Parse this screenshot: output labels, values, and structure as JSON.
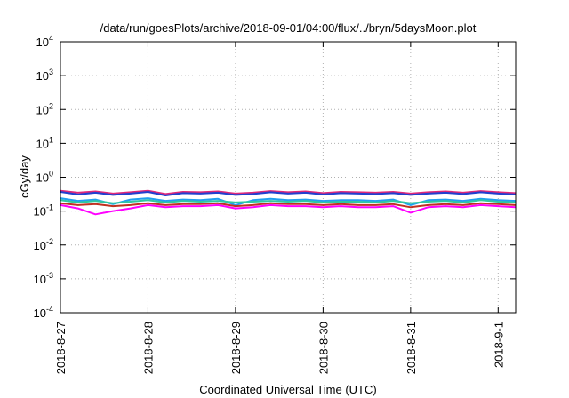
{
  "chart_data": {
    "type": "line",
    "title": "/data/run/goesPlots/archive/2018-09-01/04:00/flux/../bryn/5daysMoon.plot",
    "xlabel": "Coordinated Universal Time (UTC)",
    "ylabel": "cGy/day",
    "yscale": "log",
    "ylim": [
      0.0001,
      10000
    ],
    "xlim": [
      0,
      5.2
    ],
    "grid": true,
    "x_ticks": [
      {
        "value": 0,
        "label": "2018-8-27"
      },
      {
        "value": 1,
        "label": "2018-8-28"
      },
      {
        "value": 2,
        "label": "2018-8-29"
      },
      {
        "value": 3,
        "label": "2018-8-30"
      },
      {
        "value": 4,
        "label": "2018-8-31"
      },
      {
        "value": 5,
        "label": "2018-9-1"
      }
    ],
    "y_ticks": [
      {
        "value": 0.0001,
        "base": "10",
        "exp": "-4"
      },
      {
        "value": 0.001,
        "base": "10",
        "exp": "-3"
      },
      {
        "value": 0.01,
        "base": "10",
        "exp": "-2"
      },
      {
        "value": 0.1,
        "base": "10",
        "exp": "-1"
      },
      {
        "value": 1,
        "base": "10",
        "exp": "0"
      },
      {
        "value": 10,
        "base": "10",
        "exp": "1"
      },
      {
        "value": 100,
        "base": "10",
        "exp": "2"
      },
      {
        "value": 1000,
        "base": "10",
        "exp": "3"
      },
      {
        "value": 10000,
        "base": "10",
        "exp": "4"
      }
    ],
    "series": [
      {
        "color": "#e0287a",
        "x": [
          0,
          0.2,
          0.4,
          0.6,
          0.8,
          1.0,
          1.2,
          1.4,
          1.6,
          1.8,
          2.0,
          2.2,
          2.4,
          2.6,
          2.8,
          3.0,
          3.2,
          3.4,
          3.6,
          3.8,
          4.0,
          4.2,
          4.4,
          4.6,
          4.8,
          5.0,
          5.2
        ],
        "values": [
          0.4,
          0.35,
          0.38,
          0.33,
          0.36,
          0.4,
          0.32,
          0.37,
          0.36,
          0.38,
          0.33,
          0.35,
          0.39,
          0.36,
          0.38,
          0.34,
          0.37,
          0.36,
          0.35,
          0.37,
          0.33,
          0.36,
          0.38,
          0.35,
          0.39,
          0.36,
          0.34
        ]
      },
      {
        "color": "#2040d0",
        "x": [
          0,
          0.2,
          0.4,
          0.6,
          0.8,
          1.0,
          1.2,
          1.4,
          1.6,
          1.8,
          2.0,
          2.2,
          2.4,
          2.6,
          2.8,
          3.0,
          3.2,
          3.4,
          3.6,
          3.8,
          4.0,
          4.2,
          4.4,
          4.6,
          4.8,
          5.0,
          5.2
        ],
        "values": [
          0.37,
          0.31,
          0.35,
          0.3,
          0.33,
          0.37,
          0.29,
          0.34,
          0.33,
          0.35,
          0.3,
          0.32,
          0.36,
          0.33,
          0.35,
          0.31,
          0.34,
          0.33,
          0.32,
          0.34,
          0.3,
          0.33,
          0.35,
          0.32,
          0.36,
          0.33,
          0.31
        ]
      },
      {
        "color": "#20a0f0",
        "x": [
          0,
          0.2,
          0.4,
          0.6,
          0.8,
          1.0,
          1.2,
          1.4,
          1.6,
          1.8,
          2.0,
          2.2,
          2.4,
          2.6,
          2.8,
          3.0,
          3.2,
          3.4,
          3.6,
          3.8,
          4.0,
          4.2,
          4.4,
          4.6,
          4.8,
          5.0,
          5.2
        ],
        "values": [
          0.24,
          0.2,
          0.22,
          0.16,
          0.22,
          0.24,
          0.2,
          0.22,
          0.21,
          0.23,
          0.15,
          0.21,
          0.23,
          0.21,
          0.22,
          0.2,
          0.21,
          0.21,
          0.2,
          0.22,
          0.15,
          0.21,
          0.22,
          0.2,
          0.23,
          0.21,
          0.2
        ]
      },
      {
        "color": "#30c8a0",
        "x": [
          0,
          0.2,
          0.4,
          0.6,
          0.8,
          1.0,
          1.2,
          1.4,
          1.6,
          1.8,
          2.0,
          2.2,
          2.4,
          2.6,
          2.8,
          3.0,
          3.2,
          3.4,
          3.6,
          3.8,
          4.0,
          4.2,
          4.4,
          4.6,
          4.8,
          5.0,
          5.2
        ],
        "values": [
          0.21,
          0.18,
          0.2,
          0.17,
          0.19,
          0.21,
          0.18,
          0.2,
          0.19,
          0.2,
          0.18,
          0.19,
          0.2,
          0.19,
          0.2,
          0.18,
          0.19,
          0.19,
          0.18,
          0.2,
          0.17,
          0.19,
          0.2,
          0.18,
          0.21,
          0.19,
          0.18
        ]
      },
      {
        "color": "#ff00ff",
        "x": [
          0,
          0.2,
          0.4,
          0.6,
          0.8,
          1.0,
          1.2,
          1.4,
          1.6,
          1.8,
          2.0,
          2.2,
          2.4,
          2.6,
          2.8,
          3.0,
          3.2,
          3.4,
          3.6,
          3.8,
          4.0,
          4.2,
          4.4,
          4.6,
          4.8,
          5.0,
          5.2
        ],
        "values": [
          0.15,
          0.12,
          0.08,
          0.1,
          0.12,
          0.15,
          0.13,
          0.14,
          0.14,
          0.15,
          0.12,
          0.13,
          0.15,
          0.14,
          0.14,
          0.13,
          0.14,
          0.13,
          0.13,
          0.14,
          0.09,
          0.13,
          0.14,
          0.13,
          0.15,
          0.14,
          0.13
        ]
      },
      {
        "color": "#c03020",
        "x": [
          0,
          0.2,
          0.4,
          0.6,
          0.8,
          1.0,
          1.2,
          1.4,
          1.6,
          1.8,
          2.0,
          2.2,
          2.4,
          2.6,
          2.8,
          3.0,
          3.2,
          3.4,
          3.6,
          3.8,
          4.0,
          4.2,
          4.4,
          4.6,
          4.8,
          5.0,
          5.2
        ],
        "values": [
          0.17,
          0.15,
          0.16,
          0.14,
          0.15,
          0.17,
          0.15,
          0.16,
          0.16,
          0.17,
          0.14,
          0.15,
          0.17,
          0.16,
          0.16,
          0.15,
          0.16,
          0.15,
          0.15,
          0.16,
          0.13,
          0.15,
          0.16,
          0.15,
          0.17,
          0.16,
          0.15
        ]
      }
    ]
  }
}
